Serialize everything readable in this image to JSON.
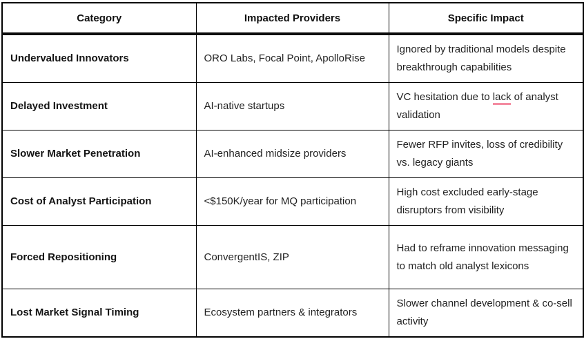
{
  "accent_colors": {
    "border_black": "#000000",
    "grammar_underline_pink": "#f48ba1"
  },
  "table": {
    "columns": [
      {
        "label": "Category"
      },
      {
        "label": "Impacted Providers"
      },
      {
        "label": "Specific Impact"
      }
    ],
    "rows": [
      {
        "category": "Undervalued Innovators",
        "providers": "ORO Labs, Focal Point, ApolloRise",
        "impact": [
          {
            "text": "Ignored by traditional models despite breakthrough capabilities",
            "underline": false
          }
        ]
      },
      {
        "category": "Delayed Investment",
        "providers": "AI-native startups",
        "impact": [
          {
            "text": "VC hesitation due to ",
            "underline": false
          },
          {
            "text": "lack",
            "underline": true
          },
          {
            "text": " of analyst validation",
            "underline": false
          }
        ]
      },
      {
        "category": "Slower Market Penetration",
        "providers": "AI-enhanced midsize providers",
        "impact": [
          {
            "text": "Fewer RFP invites, loss of credibility vs. legacy giants",
            "underline": false
          }
        ]
      },
      {
        "category": "Cost of Analyst Participation",
        "providers": "<$150K/year for MQ participation",
        "impact": [
          {
            "text": "High cost excluded early-stage disruptors from visibility",
            "underline": false
          }
        ]
      },
      {
        "category": "Forced Repositioning",
        "providers": "ConvergentIS, ZIP",
        "impact": [
          {
            "text": "Had to reframe innovation messaging to match old analyst lexicons",
            "underline": false
          }
        ]
      },
      {
        "category": "Lost Market Signal Timing",
        "providers": "Ecosystem partners & integrators",
        "impact": [
          {
            "text": "Slower channel development & co-sell activity",
            "underline": false
          }
        ]
      }
    ]
  }
}
